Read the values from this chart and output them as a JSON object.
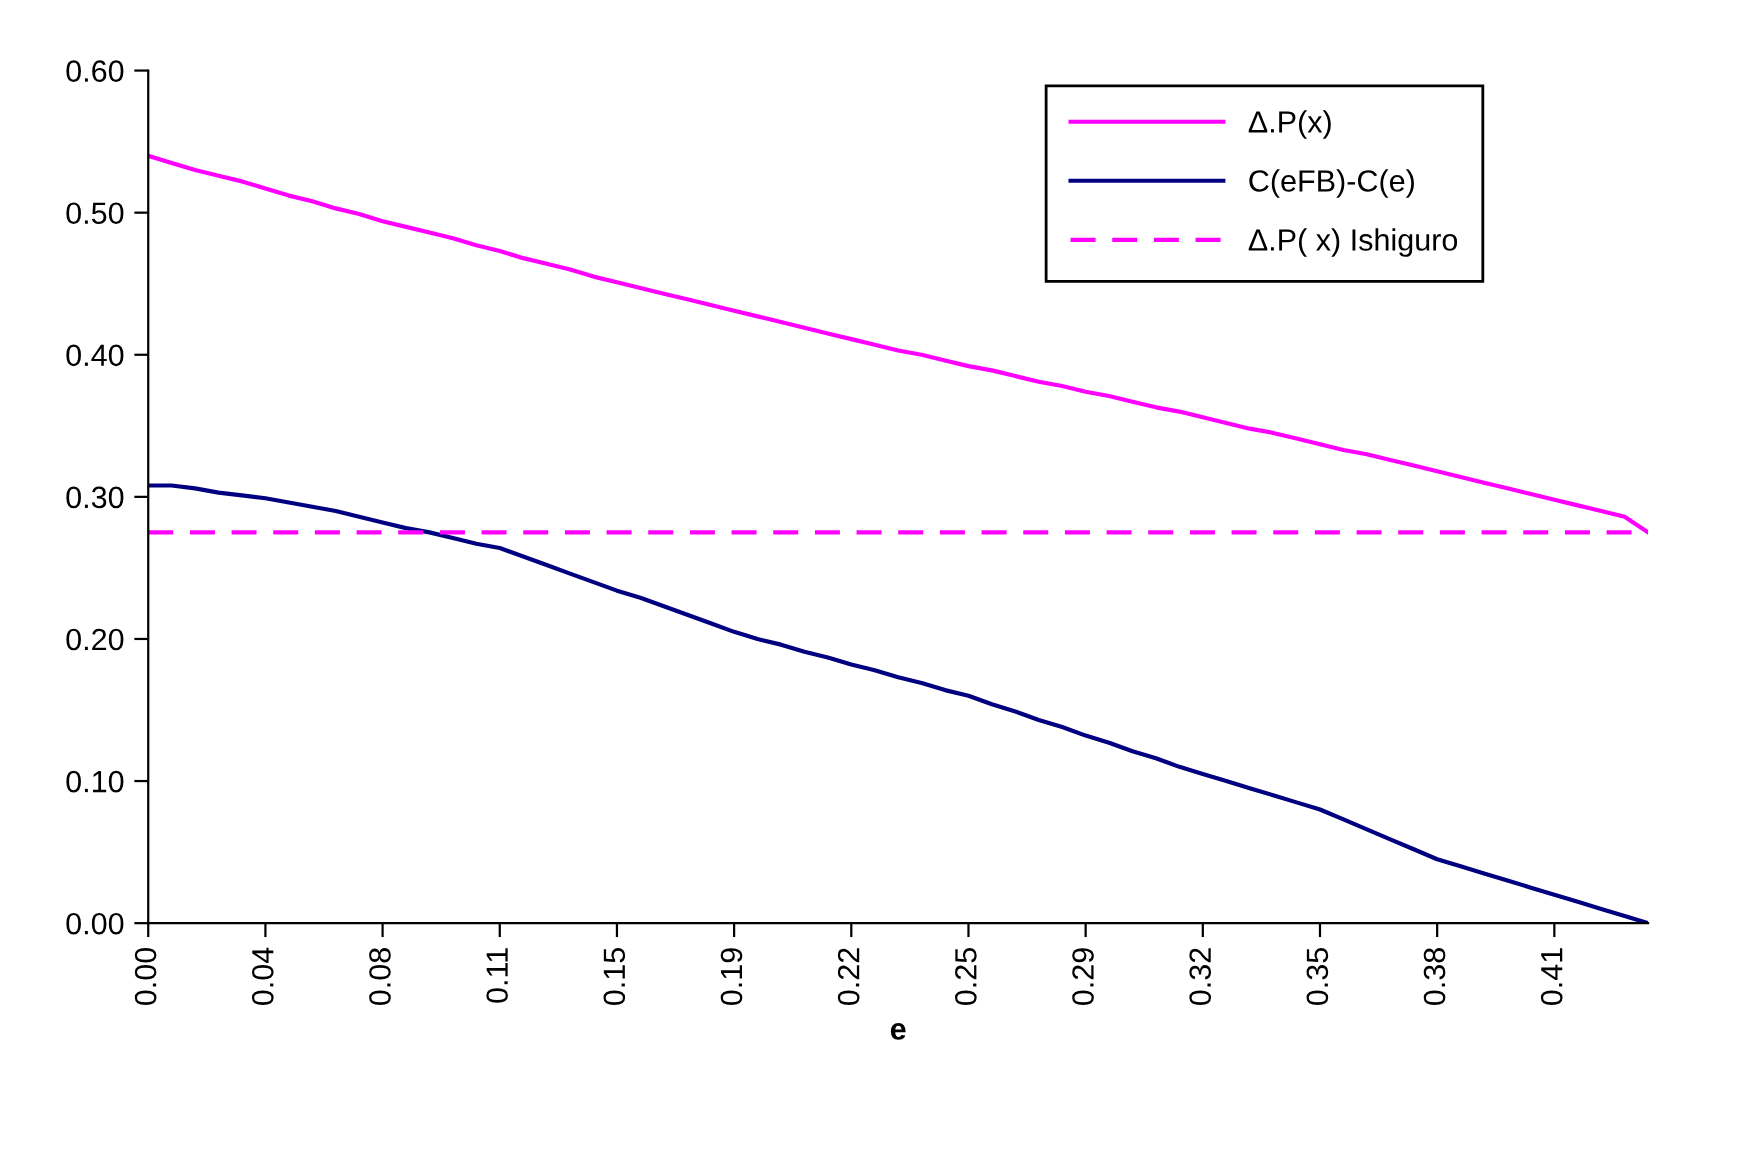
{
  "chart_data": {
    "type": "line",
    "xlabel": "e",
    "categories": [
      "0.00",
      null,
      null,
      null,
      null,
      "0.04",
      null,
      null,
      null,
      null,
      "0.08",
      null,
      null,
      null,
      null,
      "0.11",
      null,
      null,
      null,
      null,
      "0.15",
      null,
      null,
      null,
      null,
      "0.19",
      null,
      null,
      null,
      null,
      "0.22",
      null,
      null,
      null,
      null,
      "0.25",
      null,
      null,
      null,
      null,
      "0.29",
      null,
      null,
      null,
      null,
      "0.32",
      null,
      null,
      null,
      null,
      "0.35",
      null,
      null,
      null,
      null,
      "0.38",
      null,
      null,
      null,
      null,
      "0.41",
      null,
      null,
      null,
      null
    ],
    "series": [
      {
        "name": "Δ.P(x)",
        "color": "#ff00ff",
        "line_style": "solid",
        "values": [
          0.54,
          0.535,
          0.53,
          0.526,
          0.522,
          0.517,
          0.512,
          0.508,
          0.503,
          0.499,
          0.494,
          0.49,
          0.486,
          0.482,
          0.477,
          0.473,
          0.468,
          0.464,
          0.46,
          0.455,
          0.451,
          0.447,
          0.443,
          0.439,
          0.435,
          0.431,
          0.427,
          0.423,
          0.419,
          0.415,
          0.411,
          0.407,
          0.403,
          0.4,
          0.396,
          0.392,
          0.389,
          0.385,
          0.381,
          0.378,
          0.374,
          0.371,
          0.367,
          0.363,
          0.36,
          0.356,
          0.352,
          0.348,
          0.345,
          0.341,
          0.337,
          0.333,
          0.33,
          0.326,
          0.322,
          0.318,
          0.314,
          0.31,
          0.306,
          0.302,
          0.298,
          0.294,
          0.29,
          0.286,
          0.275
        ]
      },
      {
        "name": "C(eFB)-C(e)",
        "color": "#000080",
        "line_style": "solid",
        "values": [
          0.308,
          0.308,
          0.306,
          0.303,
          0.301,
          0.299,
          0.296,
          0.293,
          0.29,
          0.286,
          0.282,
          0.278,
          0.275,
          0.271,
          0.267,
          0.264,
          0.258,
          0.252,
          0.246,
          0.24,
          0.234,
          0.229,
          0.223,
          0.217,
          0.211,
          0.205,
          0.2,
          0.196,
          0.191,
          0.187,
          0.182,
          0.178,
          0.173,
          0.169,
          0.164,
          0.16,
          0.154,
          0.149,
          0.143,
          0.138,
          0.132,
          0.127,
          0.121,
          0.116,
          0.11,
          0.105,
          0.1,
          0.095,
          0.09,
          0.085,
          0.08,
          0.073,
          0.066,
          0.059,
          0.052,
          0.045,
          0.04,
          0.035,
          0.03,
          0.025,
          0.02,
          0.015,
          0.01,
          0.005,
          0.0
        ]
      },
      {
        "name": "Δ.P( x) Ishiguro",
        "color": "#ff00ff",
        "line_style": "dashed",
        "values": [
          0.275,
          0.275,
          0.275,
          0.275,
          0.275,
          0.275,
          0.275,
          0.275,
          0.275,
          0.275,
          0.275,
          0.275,
          0.275,
          0.275,
          0.275,
          0.275,
          0.275,
          0.275,
          0.275,
          0.275,
          0.275,
          0.275,
          0.275,
          0.275,
          0.275,
          0.275,
          0.275,
          0.275,
          0.275,
          0.275,
          0.275,
          0.275,
          0.275,
          0.275,
          0.275,
          0.275,
          0.275,
          0.275,
          0.275,
          0.275,
          0.275,
          0.275,
          0.275,
          0.275,
          0.275,
          0.275,
          0.275,
          0.275,
          0.275,
          0.275,
          0.275,
          0.275,
          0.275,
          0.275,
          0.275,
          0.275,
          0.275,
          0.275,
          0.275,
          0.275,
          0.275,
          0.275,
          0.275,
          0.275,
          0.275
        ]
      }
    ],
    "ylim": [
      0,
      0.6
    ],
    "yticks": [
      {
        "value": 0,
        "label": "0.00"
      },
      {
        "value": 0.1,
        "label": "0.10"
      },
      {
        "value": 0.2,
        "label": "0.20"
      },
      {
        "value": 0.3,
        "label": "0.30"
      },
      {
        "value": 0.4,
        "label": "0.40"
      },
      {
        "value": 0.5,
        "label": "0.50"
      },
      {
        "value": 0.6,
        "label": "0.60"
      }
    ],
    "grid": false,
    "legend": "top right",
    "marker": "none"
  }
}
